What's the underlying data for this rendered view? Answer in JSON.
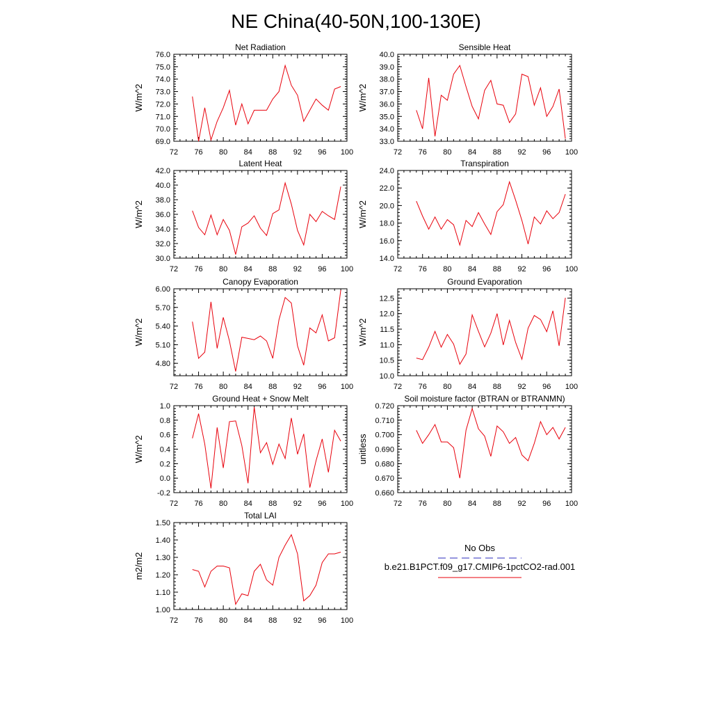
{
  "title": "NE China(40-50N,100-130E)",
  "colors": {
    "model": "#e8000b",
    "obs": "#2b2bbd",
    "axis": "#000000"
  },
  "legend": {
    "obs_label": "No Obs",
    "model_label": "b.e21.B1PCT.f09_g17.CMIP6-1pctCO2-rad.001"
  },
  "chart_data": [
    {
      "type": "line",
      "title": "Net Radiation",
      "ylabel": "W/m^2",
      "xlim": [
        72,
        100
      ],
      "xticks": [
        72,
        76,
        80,
        84,
        88,
        92,
        96,
        100
      ],
      "ylim": [
        69,
        76
      ],
      "yticks": [
        "69.0",
        "70.0",
        "71.0",
        "72.0",
        "73.0",
        "74.0",
        "75.0",
        "76.0"
      ],
      "x": [
        75,
        76,
        77,
        78,
        79,
        80,
        81,
        82,
        83,
        84,
        85,
        86,
        87,
        88,
        89,
        90,
        91,
        92,
        93,
        94,
        95,
        96,
        97,
        98,
        99
      ],
      "series": [
        {
          "values": [
            72.6,
            69.0,
            71.7,
            69.1,
            70.6,
            71.7,
            73.1,
            70.3,
            72.0,
            70.4,
            71.5,
            71.5,
            71.5,
            72.4,
            73.0,
            75.1,
            73.5,
            72.7,
            70.6,
            71.5,
            72.4,
            71.9,
            71.5,
            73.2,
            73.4
          ]
        }
      ]
    },
    {
      "type": "line",
      "title": "Sensible Heat",
      "ylabel": "W/m^2",
      "xlim": [
        72,
        100
      ],
      "xticks": [
        72,
        76,
        80,
        84,
        88,
        92,
        96,
        100
      ],
      "ylim": [
        33,
        40
      ],
      "yticks": [
        "33.0",
        "34.0",
        "35.0",
        "36.0",
        "37.0",
        "38.0",
        "39.0",
        "40.0"
      ],
      "x": [
        75,
        76,
        77,
        78,
        79,
        80,
        81,
        82,
        83,
        84,
        85,
        86,
        87,
        88,
        89,
        90,
        91,
        92,
        93,
        94,
        95,
        96,
        97,
        98,
        99
      ],
      "series": [
        {
          "values": [
            35.5,
            34.0,
            38.1,
            33.4,
            36.7,
            36.3,
            38.4,
            39.1,
            37.4,
            35.8,
            34.8,
            37.1,
            37.9,
            36.0,
            35.9,
            34.5,
            35.2,
            38.4,
            38.2,
            35.9,
            37.3,
            35.0,
            35.8,
            37.2,
            33.2
          ]
        }
      ]
    },
    {
      "type": "line",
      "title": "Latent Heat",
      "ylabel": "W/m^2",
      "xlim": [
        72,
        100
      ],
      "xticks": [
        72,
        76,
        80,
        84,
        88,
        92,
        96,
        100
      ],
      "ylim": [
        30,
        42
      ],
      "yticks": [
        "30.0",
        "32.0",
        "34.0",
        "36.0",
        "38.0",
        "40.0",
        "42.0"
      ],
      "x": [
        75,
        76,
        77,
        78,
        79,
        80,
        81,
        82,
        83,
        84,
        85,
        86,
        87,
        88,
        89,
        90,
        91,
        92,
        93,
        94,
        95,
        96,
        97,
        98,
        99
      ],
      "series": [
        {
          "values": [
            36.5,
            34.2,
            33.2,
            35.9,
            33.2,
            35.3,
            33.8,
            30.5,
            34.3,
            34.8,
            35.8,
            34.1,
            33.1,
            36.1,
            36.6,
            40.3,
            37.4,
            33.8,
            31.8,
            36.0,
            35.0,
            36.4,
            35.8,
            35.3,
            39.8
          ]
        }
      ]
    },
    {
      "type": "line",
      "title": "Transpiration",
      "ylabel": "W/m^2",
      "xlim": [
        72,
        100
      ],
      "xticks": [
        72,
        76,
        80,
        84,
        88,
        92,
        96,
        100
      ],
      "ylim": [
        14,
        24
      ],
      "yticks": [
        "14.0",
        "16.0",
        "18.0",
        "20.0",
        "22.0",
        "24.0"
      ],
      "x": [
        75,
        76,
        77,
        78,
        79,
        80,
        81,
        82,
        83,
        84,
        85,
        86,
        87,
        88,
        89,
        90,
        91,
        92,
        93,
        94,
        95,
        96,
        97,
        98,
        99
      ],
      "series": [
        {
          "values": [
            20.5,
            18.8,
            17.3,
            18.7,
            17.3,
            18.4,
            17.8,
            15.5,
            18.3,
            17.6,
            19.2,
            17.9,
            16.7,
            19.3,
            20.1,
            22.7,
            20.6,
            18.3,
            15.6,
            18.7,
            17.9,
            19.4,
            18.5,
            19.2,
            21.3
          ]
        }
      ]
    },
    {
      "type": "line",
      "title": "Canopy Evaporation",
      "ylabel": "W/m^2",
      "xlim": [
        72,
        100
      ],
      "xticks": [
        72,
        76,
        80,
        84,
        88,
        92,
        96,
        100
      ],
      "ylim": [
        4.6,
        6.0
      ],
      "yticks": [
        "4.80",
        "5.10",
        "5.40",
        "5.70",
        "6.00"
      ],
      "ytick_values": [
        4.8,
        5.1,
        5.4,
        5.7,
        6.0
      ],
      "x": [
        75,
        76,
        77,
        78,
        79,
        80,
        81,
        82,
        83,
        84,
        85,
        86,
        87,
        88,
        89,
        90,
        91,
        92,
        93,
        94,
        95,
        96,
        97,
        98,
        99
      ],
      "series": [
        {
          "values": [
            5.47,
            4.88,
            4.98,
            5.79,
            5.04,
            5.54,
            5.16,
            4.67,
            5.22,
            5.2,
            5.18,
            5.24,
            5.16,
            4.88,
            5.5,
            5.86,
            5.77,
            5.08,
            4.77,
            5.37,
            5.29,
            5.58,
            5.16,
            5.21,
            5.98
          ]
        }
      ]
    },
    {
      "type": "line",
      "title": "Ground Evaporation",
      "ylabel": "W/m^2",
      "xlim": [
        72,
        100
      ],
      "xticks": [
        72,
        76,
        80,
        84,
        88,
        92,
        96,
        100
      ],
      "ylim": [
        10.0,
        12.8
      ],
      "yticks": [
        "10.0",
        "10.5",
        "11.0",
        "11.5",
        "12.0",
        "12.5"
      ],
      "ytick_values": [
        10.0,
        10.5,
        11.0,
        11.5,
        12.0,
        12.5
      ],
      "x": [
        75,
        76,
        77,
        78,
        79,
        80,
        81,
        82,
        83,
        84,
        85,
        86,
        87,
        88,
        89,
        90,
        91,
        92,
        93,
        94,
        95,
        96,
        97,
        98,
        99
      ],
      "series": [
        {
          "values": [
            10.57,
            10.52,
            10.92,
            11.43,
            10.92,
            11.33,
            11.02,
            10.37,
            10.7,
            11.96,
            11.43,
            10.93,
            11.37,
            12.0,
            10.99,
            11.78,
            11.07,
            10.53,
            11.53,
            11.94,
            11.81,
            11.42,
            12.09,
            10.96,
            12.51
          ]
        }
      ]
    },
    {
      "type": "line",
      "title": "Ground Heat + Snow Melt",
      "ylabel": "W/m^2",
      "xlim": [
        72,
        100
      ],
      "xticks": [
        72,
        76,
        80,
        84,
        88,
        92,
        96,
        100
      ],
      "ylim": [
        -0.2,
        1.0
      ],
      "yticks": [
        "-0.2",
        "0.0",
        "0.2",
        "0.4",
        "0.6",
        "0.8",
        "1.0"
      ],
      "x": [
        75,
        76,
        77,
        78,
        79,
        80,
        81,
        82,
        83,
        84,
        85,
        86,
        87,
        88,
        89,
        90,
        91,
        92,
        93,
        94,
        95,
        96,
        97,
        98,
        99
      ],
      "series": [
        {
          "values": [
            0.55,
            0.89,
            0.47,
            -0.14,
            0.7,
            0.14,
            0.78,
            0.79,
            0.45,
            -0.07,
            0.98,
            0.35,
            0.49,
            0.19,
            0.47,
            0.27,
            0.83,
            0.33,
            0.61,
            -0.13,
            0.24,
            0.54,
            0.08,
            0.66,
            0.51
          ]
        }
      ]
    },
    {
      "type": "line",
      "title": "Soil moisture factor (BTRAN or BTRANMN)",
      "ylabel": "unitless",
      "xlim": [
        72,
        100
      ],
      "xticks": [
        72,
        76,
        80,
        84,
        88,
        92,
        96,
        100
      ],
      "ylim": [
        0.66,
        0.72
      ],
      "yticks": [
        "0.660",
        "0.670",
        "0.680",
        "0.690",
        "0.700",
        "0.710",
        "0.720"
      ],
      "x": [
        75,
        76,
        77,
        78,
        79,
        80,
        81,
        82,
        83,
        84,
        85,
        86,
        87,
        88,
        89,
        90,
        91,
        92,
        93,
        94,
        95,
        96,
        97,
        98,
        99
      ],
      "series": [
        {
          "values": [
            0.703,
            0.694,
            0.7,
            0.707,
            0.695,
            0.695,
            0.691,
            0.67,
            0.703,
            0.718,
            0.704,
            0.699,
            0.685,
            0.706,
            0.702,
            0.694,
            0.698,
            0.686,
            0.682,
            0.694,
            0.709,
            0.7,
            0.705,
            0.697,
            0.705
          ]
        }
      ]
    },
    {
      "type": "line",
      "title": "Total LAI",
      "ylabel": "m2/m2",
      "xlim": [
        72,
        100
      ],
      "xticks": [
        72,
        76,
        80,
        84,
        88,
        92,
        96,
        100
      ],
      "ylim": [
        1.0,
        1.5
      ],
      "yticks": [
        "1.00",
        "1.10",
        "1.20",
        "1.30",
        "1.40",
        "1.50"
      ],
      "x": [
        75,
        76,
        77,
        78,
        79,
        80,
        81,
        82,
        83,
        84,
        85,
        86,
        87,
        88,
        89,
        90,
        91,
        92,
        93,
        94,
        95,
        96,
        97,
        98,
        99
      ],
      "series": [
        {
          "values": [
            1.23,
            1.22,
            1.13,
            1.22,
            1.25,
            1.25,
            1.24,
            1.03,
            1.09,
            1.08,
            1.22,
            1.26,
            1.17,
            1.14,
            1.3,
            1.37,
            1.43,
            1.32,
            1.05,
            1.08,
            1.14,
            1.27,
            1.32,
            1.32,
            1.33
          ]
        }
      ]
    }
  ]
}
